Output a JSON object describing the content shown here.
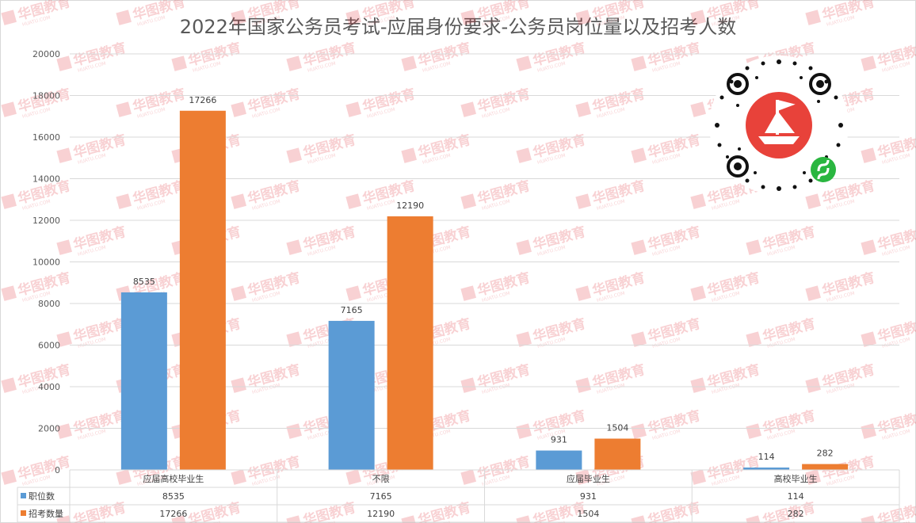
{
  "chart_data": {
    "type": "bar",
    "title": "2022年国家公务员考试-应届身份要求-公务员岗位量以及招考人数",
    "categories": [
      "应届高校毕业生",
      "不限",
      "应届毕业生",
      "高校毕业生"
    ],
    "series": [
      {
        "name": "职位数",
        "values": [
          8535,
          7165,
          931,
          114
        ],
        "color": "#5b9bd5"
      },
      {
        "name": "招考数量",
        "values": [
          17266,
          12190,
          1504,
          282
        ],
        "color": "#ed7d31"
      }
    ],
    "ylim": [
      0,
      20000
    ],
    "yticks": [
      0,
      2000,
      4000,
      6000,
      8000,
      10000,
      12000,
      14000,
      16000,
      18000,
      20000
    ],
    "grid": true,
    "legend": "data-table",
    "xlabel": "",
    "ylabel": ""
  },
  "watermark": {
    "brand": "华图教育",
    "sub": "HUATU.COM",
    "color": "#e0313a"
  },
  "qr_icon": "mini-program-qr-code-icon"
}
